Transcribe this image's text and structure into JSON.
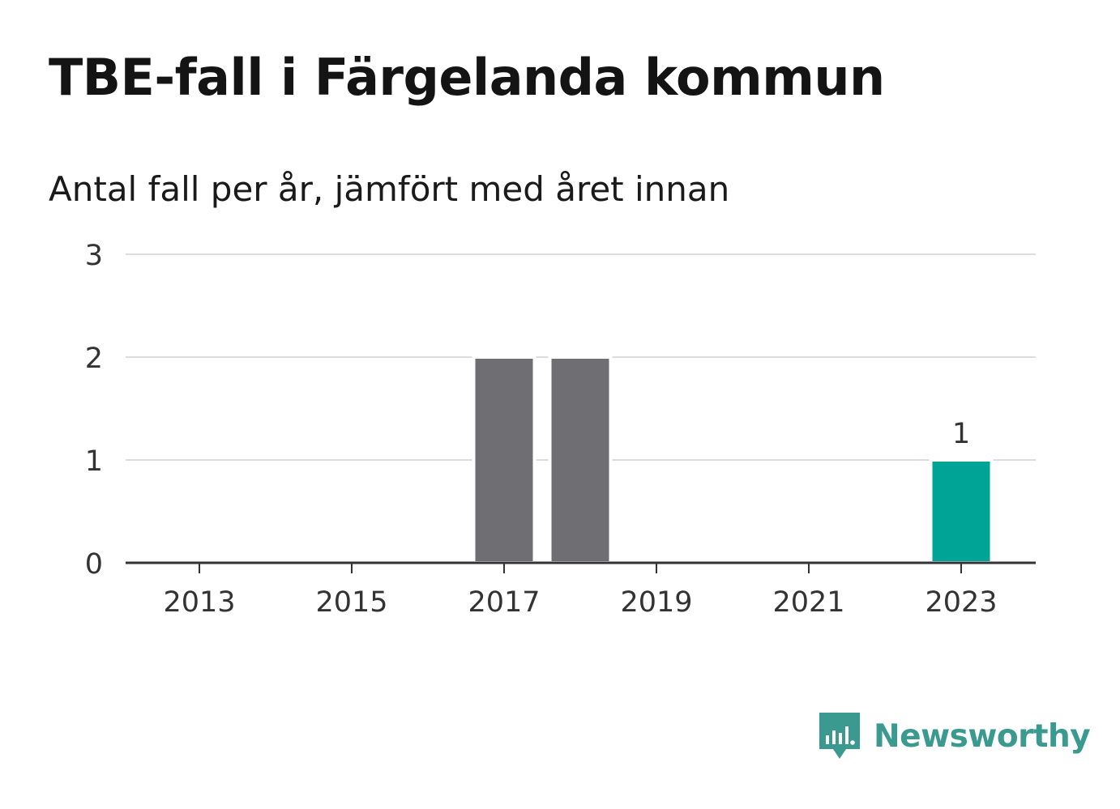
{
  "title": "TBE-fall i Färgelanda kommun",
  "subtitle": "Antal fall per år, jämfört med året innan",
  "brand": {
    "name": "Newsworthy",
    "color": "#3a9a8f",
    "icon": "bar-chart-speech-bubble-icon"
  },
  "chart_data": {
    "type": "bar",
    "categories": [
      "2013",
      "2014",
      "2015",
      "2016",
      "2017",
      "2018",
      "2019",
      "2020",
      "2021",
      "2022",
      "2023"
    ],
    "values": [
      0,
      0,
      0,
      0,
      2,
      2,
      0,
      0,
      0,
      0,
      1
    ],
    "highlight_category": "2023",
    "data_labels": [
      {
        "category": "2023",
        "text": "1"
      }
    ],
    "x_tick_labels": [
      "2013",
      "2015",
      "2017",
      "2019",
      "2021",
      "2023"
    ],
    "y_ticks": [
      0,
      1,
      2,
      3
    ],
    "y_tick_labels": [
      "0",
      "1",
      "2",
      "3"
    ],
    "ylim": [
      0,
      3
    ],
    "grid": true,
    "colors": {
      "bar": "#6f6e73",
      "highlight": "#00a497",
      "grid": "#dddddd",
      "axis": "#333333"
    }
  }
}
